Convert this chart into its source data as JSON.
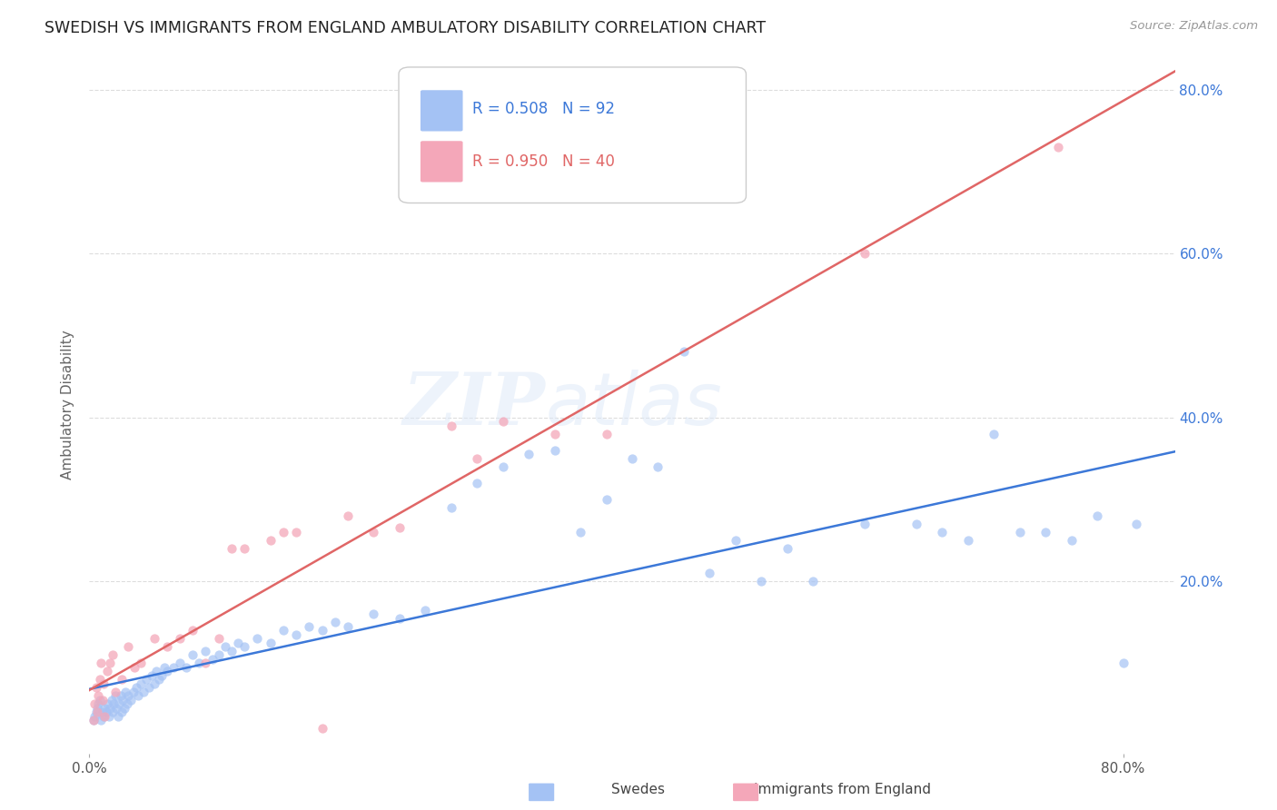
{
  "title": "SWEDISH VS IMMIGRANTS FROM ENGLAND AMBULATORY DISABILITY CORRELATION CHART",
  "source": "Source: ZipAtlas.com",
  "ylabel": "Ambulatory Disability",
  "xlim": [
    0.0,
    0.84
  ],
  "ylim": [
    -0.01,
    0.84
  ],
  "ytick_values": [
    0.0,
    0.2,
    0.4,
    0.6,
    0.8
  ],
  "xtick_values": [
    0.0,
    0.8
  ],
  "xtick_labels": [
    "0.0%",
    "80.0%"
  ],
  "right_ytick_values": [
    0.2,
    0.4,
    0.6,
    0.8
  ],
  "right_ytick_labels": [
    "20.0%",
    "40.0%",
    "60.0%",
    "80.0%"
  ],
  "swedes_color": "#a4c2f4",
  "immigrants_color": "#f4a7b9",
  "swedes_line_color": "#3c78d8",
  "immigrants_line_color": "#e06666",
  "swedes_R": 0.508,
  "swedes_N": 92,
  "immigrants_R": 0.95,
  "immigrants_N": 40,
  "legend_label_swedes": "Swedes",
  "legend_label_immigrants": "Immigrants from England",
  "watermark_zip": "ZIP",
  "watermark_atlas": "atlas",
  "background_color": "#ffffff",
  "grid_color": "#dddddd",
  "swedes_x": [
    0.003,
    0.004,
    0.005,
    0.006,
    0.007,
    0.008,
    0.009,
    0.01,
    0.011,
    0.012,
    0.013,
    0.014,
    0.015,
    0.016,
    0.017,
    0.018,
    0.019,
    0.02,
    0.021,
    0.022,
    0.023,
    0.024,
    0.025,
    0.026,
    0.027,
    0.028,
    0.029,
    0.03,
    0.032,
    0.034,
    0.036,
    0.038,
    0.04,
    0.042,
    0.044,
    0.046,
    0.048,
    0.05,
    0.052,
    0.054,
    0.056,
    0.058,
    0.06,
    0.065,
    0.07,
    0.075,
    0.08,
    0.085,
    0.09,
    0.095,
    0.1,
    0.105,
    0.11,
    0.115,
    0.12,
    0.13,
    0.14,
    0.15,
    0.16,
    0.17,
    0.18,
    0.19,
    0.2,
    0.22,
    0.24,
    0.26,
    0.28,
    0.3,
    0.32,
    0.34,
    0.36,
    0.38,
    0.4,
    0.42,
    0.44,
    0.46,
    0.48,
    0.5,
    0.52,
    0.54,
    0.56,
    0.6,
    0.64,
    0.66,
    0.68,
    0.7,
    0.72,
    0.74,
    0.76,
    0.78,
    0.8,
    0.81
  ],
  "swedes_y": [
    0.03,
    0.035,
    0.04,
    0.045,
    0.05,
    0.055,
    0.03,
    0.04,
    0.035,
    0.045,
    0.04,
    0.05,
    0.035,
    0.045,
    0.055,
    0.04,
    0.05,
    0.06,
    0.045,
    0.035,
    0.05,
    0.06,
    0.04,
    0.055,
    0.045,
    0.065,
    0.05,
    0.06,
    0.055,
    0.065,
    0.07,
    0.06,
    0.075,
    0.065,
    0.08,
    0.07,
    0.085,
    0.075,
    0.09,
    0.08,
    0.085,
    0.095,
    0.09,
    0.095,
    0.1,
    0.095,
    0.11,
    0.1,
    0.115,
    0.105,
    0.11,
    0.12,
    0.115,
    0.125,
    0.12,
    0.13,
    0.125,
    0.14,
    0.135,
    0.145,
    0.14,
    0.15,
    0.145,
    0.16,
    0.155,
    0.165,
    0.29,
    0.32,
    0.34,
    0.355,
    0.36,
    0.26,
    0.3,
    0.35,
    0.34,
    0.48,
    0.21,
    0.25,
    0.2,
    0.24,
    0.2,
    0.27,
    0.27,
    0.26,
    0.25,
    0.38,
    0.26,
    0.26,
    0.25,
    0.28,
    0.1,
    0.27
  ],
  "immigrants_x": [
    0.003,
    0.004,
    0.005,
    0.006,
    0.007,
    0.008,
    0.009,
    0.01,
    0.011,
    0.012,
    0.014,
    0.016,
    0.018,
    0.02,
    0.025,
    0.03,
    0.035,
    0.04,
    0.05,
    0.06,
    0.07,
    0.08,
    0.09,
    0.1,
    0.11,
    0.12,
    0.14,
    0.15,
    0.16,
    0.18,
    0.2,
    0.22,
    0.24,
    0.28,
    0.3,
    0.32,
    0.36,
    0.4,
    0.6,
    0.75
  ],
  "immigrants_y": [
    0.03,
    0.05,
    0.07,
    0.04,
    0.06,
    0.08,
    0.1,
    0.055,
    0.075,
    0.035,
    0.09,
    0.1,
    0.11,
    0.065,
    0.08,
    0.12,
    0.095,
    0.1,
    0.13,
    0.12,
    0.13,
    0.14,
    0.1,
    0.13,
    0.24,
    0.24,
    0.25,
    0.26,
    0.26,
    0.02,
    0.28,
    0.26,
    0.265,
    0.39,
    0.35,
    0.395,
    0.38,
    0.38,
    0.6,
    0.73
  ]
}
